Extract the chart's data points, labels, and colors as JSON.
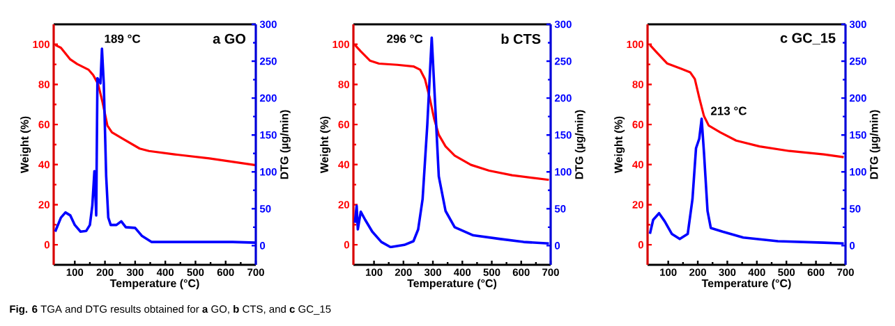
{
  "chart_data": [
    {
      "type": "line",
      "title": "a GO",
      "xlabel": "Temperature (°C)",
      "ylabel": "Weight (%)",
      "y2label": "DTG (µg/min)",
      "annotations": [
        "189 °C",
        "**Fig. 6**  TGA and DTG results obtained for **a** GO, **b** CTS, and **c** GC_15"
      ],
      "xlim": [
        30,
        700
      ],
      "xticks": [
        100,
        200,
        300,
        400,
        500,
        600,
        700
      ],
      "ylim": [
        -10,
        110
      ],
      "yticks": [
        0,
        20,
        40,
        60,
        80,
        100
      ],
      "y2lim": [
        -26,
        300
      ],
      "y2ticks": [
        0,
        50,
        100,
        150,
        200,
        250,
        300
      ],
      "series": [
        {
          "color": "#ff0000",
          "x": [
            35,
            54,
            85,
            108,
            146,
            161,
            177,
            192,
            208,
            223,
            262,
            315,
            346,
            431,
            546,
            700
          ],
          "values": [
            99.7,
            98.3,
            92.5,
            90.2,
            87.3,
            84.7,
            80.3,
            71.1,
            59.5,
            56.1,
            52.6,
            48,
            46.8,
            45.1,
            43.1,
            39.7
          ]
        },
        {
          "color": "#0000ff",
          "axis": "y2",
          "x": [
            35,
            54,
            69,
            85,
            100,
            119,
            138,
            150,
            158,
            165,
            171,
            175,
            181,
            185,
            190,
            196,
            204,
            211,
            219,
            238,
            254,
            269,
            300,
            323,
            354,
            469,
            623,
            700
          ],
          "values": [
            19,
            38,
            45,
            41,
            28,
            19,
            20,
            28,
            54,
            101,
            41,
            227,
            223,
            220,
            267,
            220,
            94,
            38,
            28,
            28,
            33,
            25,
            24,
            13,
            5,
            5,
            5,
            4
          ]
        }
      ]
    },
    {
      "type": "line",
      "title": "b CTS",
      "xlabel": "Temperature (°C)",
      "ylabel": "Weight (%)",
      "y2label": "DTG (µg/min)",
      "annotations": [
        "296 °C"
      ],
      "xlim": [
        30,
        700
      ],
      "xticks": [
        100,
        200,
        300,
        400,
        500,
        600,
        700
      ],
      "ylim": [
        -10,
        110
      ],
      "yticks": [
        0,
        20,
        40,
        60,
        80,
        100
      ],
      "y2lim": [
        -26,
        300
      ],
      "y2ticks": [
        0,
        50,
        100,
        150,
        200,
        250,
        300
      ],
      "series": [
        {
          "color": "#ff0000",
          "x": [
            35,
            55,
            86,
            117,
            179,
            234,
            257,
            273,
            289,
            304,
            320,
            343,
            374,
            429,
            491,
            569,
            694
          ],
          "values": [
            99.7,
            96.5,
            91.9,
            90.4,
            89.8,
            89,
            87.3,
            82.7,
            73.4,
            63,
            54.9,
            49.1,
            44.5,
            39.9,
            37,
            34.7,
            32.4
          ]
        },
        {
          "color": "#0000ff",
          "axis": "y2",
          "x": [
            35,
            41,
            45,
            55,
            70,
            94,
            125,
            156,
            203,
            234,
            250,
            265,
            281,
            296,
            308,
            320,
            343,
            374,
            437,
            530,
            608,
            694
          ],
          "values": [
            31,
            54,
            22,
            46,
            35,
            19,
            5,
            -2,
            1,
            6,
            22,
            63,
            164,
            282,
            189,
            94,
            47,
            25,
            14,
            9,
            5,
            3
          ]
        }
      ]
    },
    {
      "type": "line",
      "title": "c GC_15",
      "xlabel": "Temperature (°C)",
      "ylabel": "Weight (%)",
      "y2label": "DTG (µg/min)",
      "annotations": [
        "213 °C"
      ],
      "xlim": [
        30,
        700
      ],
      "xticks": [
        100,
        200,
        300,
        400,
        500,
        600,
        700
      ],
      "ylim": [
        -10,
        110
      ],
      "yticks": [
        0,
        20,
        40,
        60,
        80,
        100
      ],
      "y2lim": [
        -26,
        300
      ],
      "y2ticks": [
        0,
        50,
        100,
        150,
        200,
        250,
        300
      ],
      "series": [
        {
          "color": "#ff0000",
          "x": [
            38,
            61,
            96,
            143,
            174,
            190,
            205,
            221,
            237,
            276,
            330,
            409,
            510,
            627,
            694
          ],
          "values": [
            99.7,
            96,
            90.5,
            87.9,
            86.1,
            82.7,
            73.4,
            64.2,
            59.5,
            56.1,
            52,
            49.1,
            46.8,
            45.1,
            43.7
          ]
        },
        {
          "color": "#0000ff",
          "axis": "y2",
          "x": [
            38,
            49,
            69,
            88,
            112,
            139,
            166,
            182,
            194,
            205,
            213,
            221,
            233,
            244,
            284,
            354,
            471,
            627,
            694
          ],
          "values": [
            16,
            35,
            44,
            33,
            16,
            9,
            16,
            63,
            132,
            145,
            172,
            126,
            47,
            24,
            19,
            11,
            6,
            4,
            3
          ]
        }
      ]
    }
  ]
}
